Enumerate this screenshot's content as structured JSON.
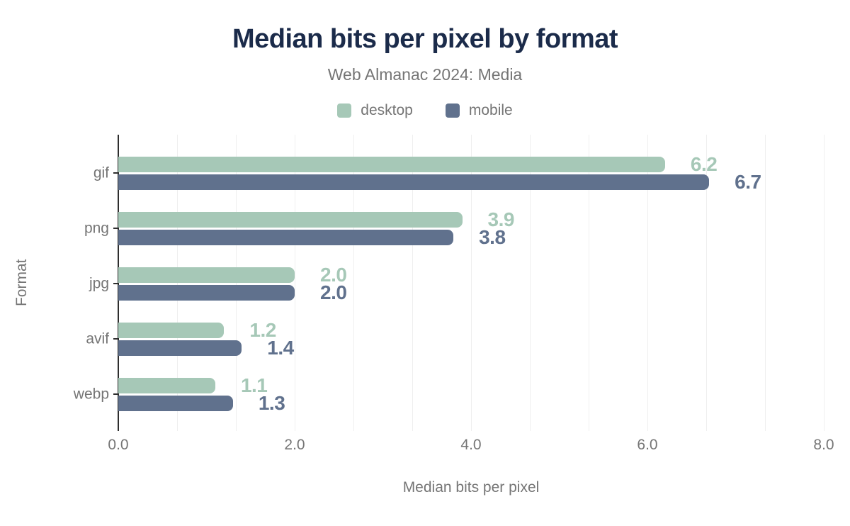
{
  "title": "Median bits per pixel by format",
  "subtitle": "Web Almanac 2024: Media",
  "legend": {
    "items": [
      {
        "label": "desktop",
        "color": "#a6c8b7"
      },
      {
        "label": "mobile",
        "color": "#60718d"
      }
    ]
  },
  "axes": {
    "x_title": "Median bits per pixel",
    "y_title": "Format",
    "x_ticks": [
      "0.0",
      "2.0",
      "4.0",
      "6.0",
      "8.0"
    ]
  },
  "colors": {
    "title_text": "#1b2b4a",
    "muted_text": "#757575",
    "desktop_series": "#a6c8b7",
    "mobile_series": "#60718d",
    "gridline": "#efefef",
    "axis_line": "#2e2e2e",
    "background": "#ffffff"
  },
  "chart_data": {
    "type": "bar",
    "orientation": "horizontal",
    "title": "Median bits per pixel by format",
    "subtitle": "Web Almanac 2024: Media",
    "xlabel": "Median bits per pixel",
    "ylabel": "Format",
    "categories": [
      "gif",
      "png",
      "jpg",
      "avif",
      "webp"
    ],
    "series": [
      {
        "name": "desktop",
        "color": "#a6c8b7",
        "values": [
          6.2,
          3.9,
          2.0,
          1.2,
          1.1
        ],
        "labels": [
          "6.2",
          "3.9",
          "2.0",
          "1.2",
          "1.1"
        ]
      },
      {
        "name": "mobile",
        "color": "#60718d",
        "values": [
          6.7,
          3.8,
          2.0,
          1.4,
          1.3
        ],
        "labels": [
          "6.7",
          "3.8",
          "2.0",
          "1.4",
          "1.3"
        ]
      }
    ],
    "xlim": [
      0,
      8
    ],
    "x_tick_values": [
      0.0,
      2.0,
      4.0,
      6.0,
      8.0
    ],
    "grid": true,
    "minor_gridlines_per_major": 3,
    "legend_position": "top",
    "data_labels": true
  }
}
